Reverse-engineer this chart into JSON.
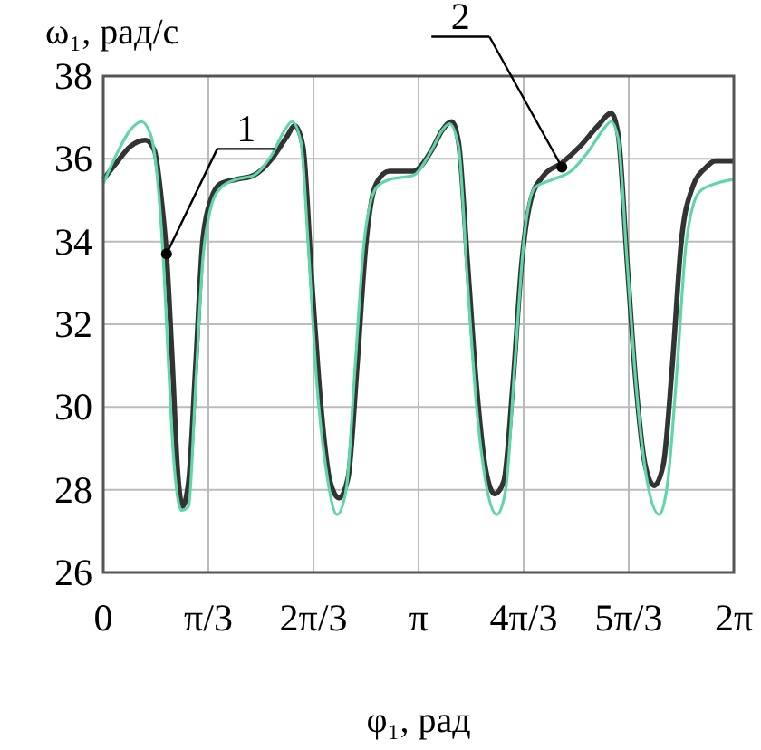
{
  "chart_data": {
    "type": "line",
    "xlabel": "φ₁, рад",
    "ylabel": "ω₁, рад/с",
    "xlim": [
      0,
      6.2832
    ],
    "ylim": [
      26,
      38
    ],
    "xticks": [
      0,
      {
        "value": 1.0472,
        "label": "π/3"
      },
      {
        "value": 2.0944,
        "label": "2π/3"
      },
      {
        "value": 3.1416,
        "label": "π"
      },
      {
        "value": 4.1888,
        "label": "4π/3"
      },
      {
        "value": 5.236,
        "label": "5π/3"
      },
      {
        "value": 6.2832,
        "label": "2π"
      }
    ],
    "yticks": [
      26,
      28,
      30,
      32,
      34,
      36,
      38
    ],
    "grid": true,
    "series": [
      {
        "color": "#333333",
        "x": [
          0,
          0.13,
          0.27,
          0.42,
          0.51,
          0.58,
          0.63,
          0.69,
          0.74,
          0.79,
          0.85,
          0.92,
          0.99,
          1.07,
          1.17,
          1.32,
          1.5,
          1.68,
          1.82,
          1.91,
          1.99,
          2.08,
          2.17,
          2.26,
          2.35,
          2.44,
          2.53,
          2.62,
          2.72,
          2.85,
          3.09,
          3.27,
          3.38,
          3.47,
          3.54,
          3.63,
          3.72,
          3.81,
          3.9,
          3.99,
          4.08,
          4.17,
          4.26,
          4.39,
          4.57,
          4.75,
          4.93,
          5.06,
          5.13,
          5.22,
          5.31,
          5.4,
          5.49,
          5.58,
          5.67,
          5.76,
          5.87,
          6.01,
          6.1,
          6.28
        ],
        "values": [
          35.5,
          35.9,
          36.3,
          36.45,
          36.2,
          35,
          33.7,
          31,
          28.5,
          27.6,
          28.2,
          31,
          34,
          35,
          35.4,
          35.5,
          35.6,
          36,
          36.5,
          36.8,
          36.3,
          33,
          30,
          28.2,
          27.8,
          28.3,
          31,
          34,
          35.4,
          35.7,
          35.7,
          36.2,
          36.7,
          36.9,
          36.4,
          33.5,
          30.5,
          28.5,
          27.9,
          28.2,
          30.5,
          33.5,
          35,
          35.6,
          35.9,
          36.3,
          36.8,
          37.1,
          36.6,
          33.5,
          30.5,
          28.6,
          28.1,
          28.6,
          31,
          34,
          35.3,
          35.8,
          35.95,
          35.95
        ]
      },
      {
        "color": "#5ed6a6",
        "x": [
          0,
          0.13,
          0.27,
          0.38,
          0.47,
          0.54,
          0.6,
          0.65,
          0.7,
          0.78,
          0.85,
          0.92,
          0.99,
          1.07,
          1.17,
          1.32,
          1.5,
          1.68,
          1.81,
          1.88,
          1.97,
          2.04,
          2.13,
          2.22,
          2.33,
          2.42,
          2.51,
          2.6,
          2.72,
          2.85,
          3.09,
          3.27,
          3.38,
          3.45,
          3.54,
          3.63,
          3.72,
          3.81,
          3.92,
          4.01,
          4.1,
          4.19,
          4.3,
          4.48,
          4.66,
          4.84,
          4.98,
          5.06,
          5.13,
          5.22,
          5.31,
          5.42,
          5.54,
          5.63,
          5.72,
          5.81,
          5.94,
          6.1,
          6.28
        ],
        "values": [
          35.4,
          36.1,
          36.7,
          36.9,
          36.6,
          35.5,
          33.5,
          31,
          28.8,
          27.5,
          27.6,
          30.5,
          33.5,
          34.8,
          35.3,
          35.5,
          35.6,
          36.1,
          36.7,
          36.9,
          36.4,
          34,
          30.5,
          28.5,
          27.4,
          28,
          31,
          34,
          35.3,
          35.5,
          35.6,
          36.2,
          36.7,
          36.85,
          36.3,
          33,
          30,
          28.2,
          27.4,
          28,
          31,
          34,
          35.3,
          35.5,
          35.7,
          36.2,
          36.7,
          36.9,
          36.5,
          33.5,
          30.5,
          28.2,
          27.4,
          28.3,
          31,
          34,
          35.2,
          35.4,
          35.5
        ]
      }
    ],
    "annotations": [
      {
        "text": "1",
        "x": 0.63,
        "y": 33.7
      },
      {
        "text": "2",
        "x": 4.57,
        "y": 35.8
      }
    ]
  }
}
